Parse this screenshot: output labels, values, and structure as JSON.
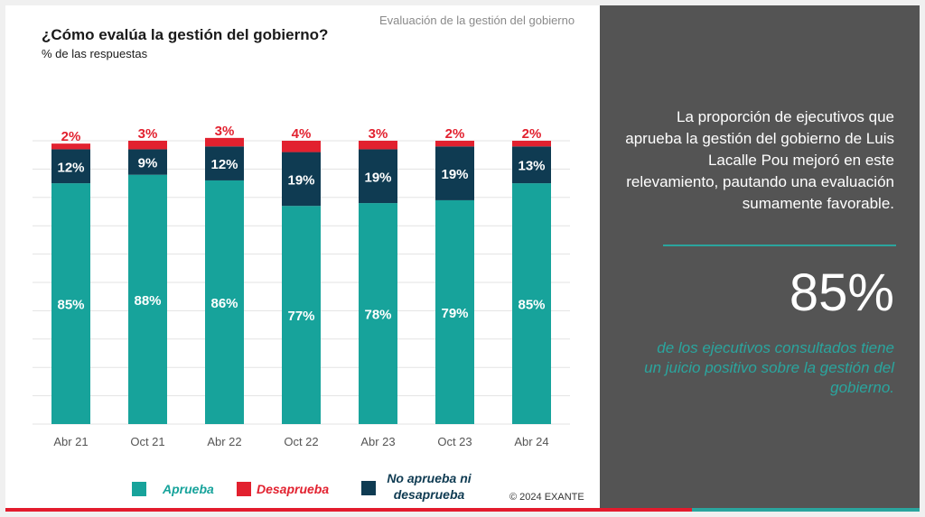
{
  "header": {
    "label": "Evaluación de la gestión del gobierno"
  },
  "chart": {
    "title": "¿Cómo evalúa la gestión del gobierno?",
    "subtitle": "% de las respuestas"
  },
  "colors": {
    "aprueba": "#17a39b",
    "desaprueba": "#e2212f",
    "no_aprueba_ni_desaprueba": "#0f3b52",
    "grid": "#e3e3e3",
    "panel": "#545454",
    "accent": "#2aa59e"
  },
  "chart_data": {
    "type": "bar",
    "stacked": true,
    "categories": [
      "Abr 21",
      "Oct 21",
      "Abr 22",
      "Oct 22",
      "Abr 23",
      "Oct 23",
      "Abr 24"
    ],
    "series": [
      {
        "key": "aprueba",
        "name": "Aprueba",
        "values": [
          85,
          88,
          86,
          77,
          78,
          79,
          85
        ],
        "labels": [
          "85%",
          "88%",
          "86%",
          "77%",
          "78%",
          "79%",
          "85%"
        ]
      },
      {
        "key": "no_aprueba_ni_desaprueba",
        "name": "No aprueba ni desaprueba",
        "values": [
          12,
          9,
          12,
          19,
          19,
          19,
          13
        ],
        "labels": [
          "12%",
          "9%",
          "12%",
          "19%",
          "19%",
          "19%",
          "13%"
        ]
      },
      {
        "key": "desaprueba",
        "name": "Desaprueba",
        "values": [
          2,
          3,
          3,
          4,
          3,
          2,
          2
        ],
        "labels": [
          "2%",
          "3%",
          "3%",
          "4%",
          "3%",
          "2%",
          "2%"
        ]
      }
    ],
    "ylim": [
      0,
      100
    ],
    "grid": true,
    "legend_position": "bottom"
  },
  "legend": {
    "items": [
      {
        "key": "aprueba",
        "label": "Aprueba",
        "color": "#17a39b"
      },
      {
        "key": "desaprueba",
        "label": "Desaprueba",
        "color": "#e2212f"
      },
      {
        "key": "no_aprueba_ni_desaprueba",
        "label_line1": "No aprueba ni",
        "label_line2": "desaprueba",
        "color": "#0f3b52"
      }
    ]
  },
  "footer": {
    "copyright": "© 2024 EXANTE"
  },
  "side_panel": {
    "text": "La proporción de ejecutivos que aprueba la gestión del gobierno de Luis Lacalle Pou mejoró en este relevamiento, pautando una evaluación sumamente favorable.",
    "big_number": "85%",
    "caption": "de los ejecutivos consultados tiene un juicio positivo sobre la gestión del gobierno."
  }
}
